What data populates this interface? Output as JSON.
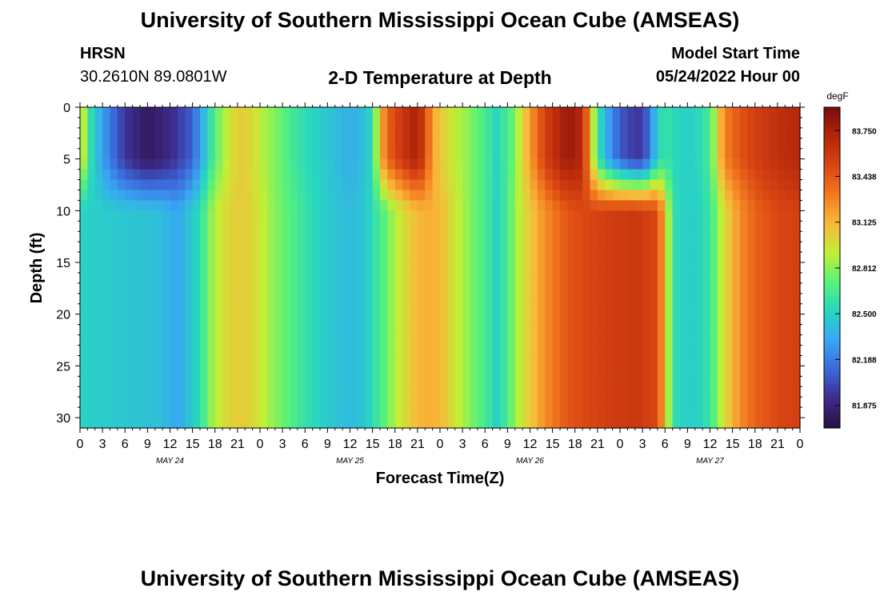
{
  "header": {
    "title": "University of Southern Mississippi Ocean Cube (AMSEAS)",
    "station": "HRSN",
    "coords": "30.2610N  89.0801W",
    "subtitle": "2-D Temperature at Depth",
    "model_start_label": "Model Start Time",
    "model_start_value": "05/24/2022 Hour 00"
  },
  "footer": {
    "title": "University of Southern Mississippi Ocean Cube (AMSEAS)"
  },
  "colors": {
    "colormap": [
      "#2b0f3d",
      "#3d2b8c",
      "#3c67d8",
      "#38a6f3",
      "#28d6c0",
      "#58f27a",
      "#c2ef35",
      "#f9b93a",
      "#f27b1f",
      "#d94412",
      "#b3260b",
      "#7a0b0b"
    ]
  },
  "chart_data": {
    "type": "heatmap",
    "title": "2-D Temperature at Depth",
    "xlabel": "Forecast Time(Z)",
    "ylabel": "Depth (ft)",
    "x_ticks": [
      "0",
      "3",
      "6",
      "9",
      "12",
      "15",
      "18",
      "21",
      "0",
      "3",
      "6",
      "9",
      "12",
      "15",
      "18",
      "21",
      "0",
      "3",
      "6",
      "9",
      "12",
      "15",
      "18",
      "21",
      "0",
      "3",
      "6",
      "9",
      "12",
      "15",
      "18",
      "21",
      "0"
    ],
    "day_labels": [
      {
        "label": "MAY 24",
        "hour": 12
      },
      {
        "label": "MAY 25",
        "hour": 36
      },
      {
        "label": "MAY 26",
        "hour": 60
      },
      {
        "label": "MAY 27",
        "hour": 84
      }
    ],
    "xlim_hours": [
      0,
      96
    ],
    "ylim_ft": [
      0,
      31
    ],
    "y_ticks": [
      0,
      5,
      10,
      15,
      20,
      25,
      30
    ],
    "colorbar": {
      "units": "degF",
      "tick_labels": [
        "83.750",
        "83.438",
        "83.125",
        "82.812",
        "82.500",
        "82.188",
        "81.875"
      ],
      "range": [
        81.72,
        83.91
      ]
    },
    "surface_profile_degF": [
      [
        0,
        83.05
      ],
      [
        1.5,
        82.55
      ],
      [
        3,
        82.3
      ],
      [
        6,
        81.95
      ],
      [
        9,
        81.8
      ],
      [
        12,
        81.9
      ],
      [
        15,
        82.1
      ],
      [
        17,
        82.5
      ],
      [
        18,
        82.7
      ],
      [
        19,
        82.85
      ],
      [
        21,
        83.05
      ],
      [
        23,
        83.0
      ],
      [
        24,
        82.9
      ],
      [
        26,
        82.8
      ],
      [
        28,
        82.65
      ],
      [
        30,
        82.55
      ],
      [
        33,
        82.45
      ],
      [
        36,
        82.35
      ],
      [
        38,
        82.42
      ],
      [
        39,
        82.55
      ],
      [
        40,
        83.1
      ],
      [
        41,
        83.4
      ],
      [
        43,
        83.6
      ],
      [
        45,
        83.75
      ],
      [
        46,
        83.5
      ],
      [
        47,
        83.2
      ],
      [
        48,
        83.05
      ],
      [
        50,
        82.92
      ],
      [
        52,
        82.8
      ],
      [
        54,
        82.65
      ],
      [
        55.5,
        82.52
      ],
      [
        57,
        82.65
      ],
      [
        58,
        82.8
      ],
      [
        60,
        83.2
      ],
      [
        62,
        83.55
      ],
      [
        65,
        83.8
      ],
      [
        67,
        83.7
      ],
      [
        69,
        82.6
      ],
      [
        70,
        82.4
      ],
      [
        71,
        82.2
      ],
      [
        73,
        82.0
      ],
      [
        75,
        81.95
      ],
      [
        76,
        82.2
      ],
      [
        77,
        82.5
      ],
      [
        78,
        82.6
      ],
      [
        80,
        82.5
      ],
      [
        82,
        82.5
      ],
      [
        84,
        82.65
      ],
      [
        85,
        83.0
      ],
      [
        86,
        83.3
      ],
      [
        88,
        83.45
      ],
      [
        90,
        83.55
      ],
      [
        93,
        83.65
      ],
      [
        96,
        83.7
      ]
    ],
    "deep_profile_degF": [
      [
        0,
        82.5
      ],
      [
        6,
        82.45
      ],
      [
        10,
        82.43
      ],
      [
        12,
        82.38
      ],
      [
        13,
        82.3
      ],
      [
        14,
        82.4
      ],
      [
        16,
        82.55
      ],
      [
        17,
        82.75
      ],
      [
        18,
        82.9
      ],
      [
        20,
        83.02
      ],
      [
        22,
        83.05
      ],
      [
        24,
        82.95
      ],
      [
        26,
        82.8
      ],
      [
        28,
        82.7
      ],
      [
        30,
        82.58
      ],
      [
        33,
        82.47
      ],
      [
        36,
        82.4
      ],
      [
        38,
        82.45
      ],
      [
        40,
        82.65
      ],
      [
        42,
        82.88
      ],
      [
        44,
        83.05
      ],
      [
        46,
        83.15
      ],
      [
        48,
        83.12
      ],
      [
        50,
        82.95
      ],
      [
        52,
        82.8
      ],
      [
        54,
        82.65
      ],
      [
        55.5,
        82.5
      ],
      [
        57,
        82.65
      ],
      [
        58,
        82.85
      ],
      [
        60,
        83.05
      ],
      [
        62,
        83.25
      ],
      [
        65,
        83.45
      ],
      [
        70,
        83.55
      ],
      [
        74,
        83.6
      ],
      [
        77,
        83.5
      ],
      [
        78,
        83.1
      ],
      [
        79,
        82.6
      ],
      [
        80,
        82.5
      ],
      [
        82,
        82.48
      ],
      [
        84,
        82.6
      ],
      [
        85,
        82.8
      ],
      [
        86,
        83.0
      ],
      [
        88,
        83.25
      ],
      [
        90,
        83.4
      ],
      [
        93,
        83.5
      ],
      [
        96,
        83.55
      ]
    ]
  }
}
